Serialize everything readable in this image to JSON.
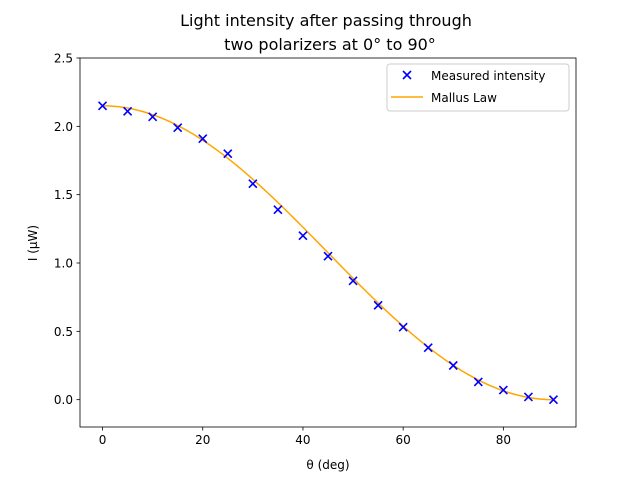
{
  "chart_data": {
    "type": "scatter",
    "title_line1": "Light intensity after passing through",
    "title_line2": "two polarizers at 0° to 90°",
    "xlabel": "θ (deg)",
    "ylabel": "I (μW)",
    "xlim": [
      -4.5,
      94.5
    ],
    "ylim": [
      -0.2,
      2.5
    ],
    "xticks": [
      0,
      20,
      40,
      60,
      80
    ],
    "yticks": [
      0.0,
      0.5,
      1.0,
      1.5,
      2.0,
      2.5
    ],
    "xtick_labels": [
      "0",
      "20",
      "40",
      "60",
      "80"
    ],
    "ytick_labels": [
      "0.0",
      "0.5",
      "1.0",
      "1.5",
      "2.0",
      "2.5"
    ],
    "grid": false,
    "legend_position": "top-right",
    "series": [
      {
        "name": "Measured intensity",
        "kind": "scatter",
        "marker": "x",
        "color": "#0000ff",
        "x": [
          0,
          5,
          10,
          15,
          20,
          25,
          30,
          35,
          40,
          45,
          50,
          55,
          60,
          65,
          70,
          75,
          80,
          85,
          90
        ],
        "y": [
          2.15,
          2.11,
          2.07,
          1.99,
          1.91,
          1.8,
          1.58,
          1.39,
          1.2,
          1.05,
          0.87,
          0.69,
          0.53,
          0.38,
          0.25,
          0.13,
          0.07,
          0.02,
          0.0
        ]
      },
      {
        "name": "Mallus Law",
        "kind": "line",
        "color": "#ffa500",
        "amplitude": 2.15,
        "x_range": [
          0,
          90
        ]
      }
    ]
  }
}
